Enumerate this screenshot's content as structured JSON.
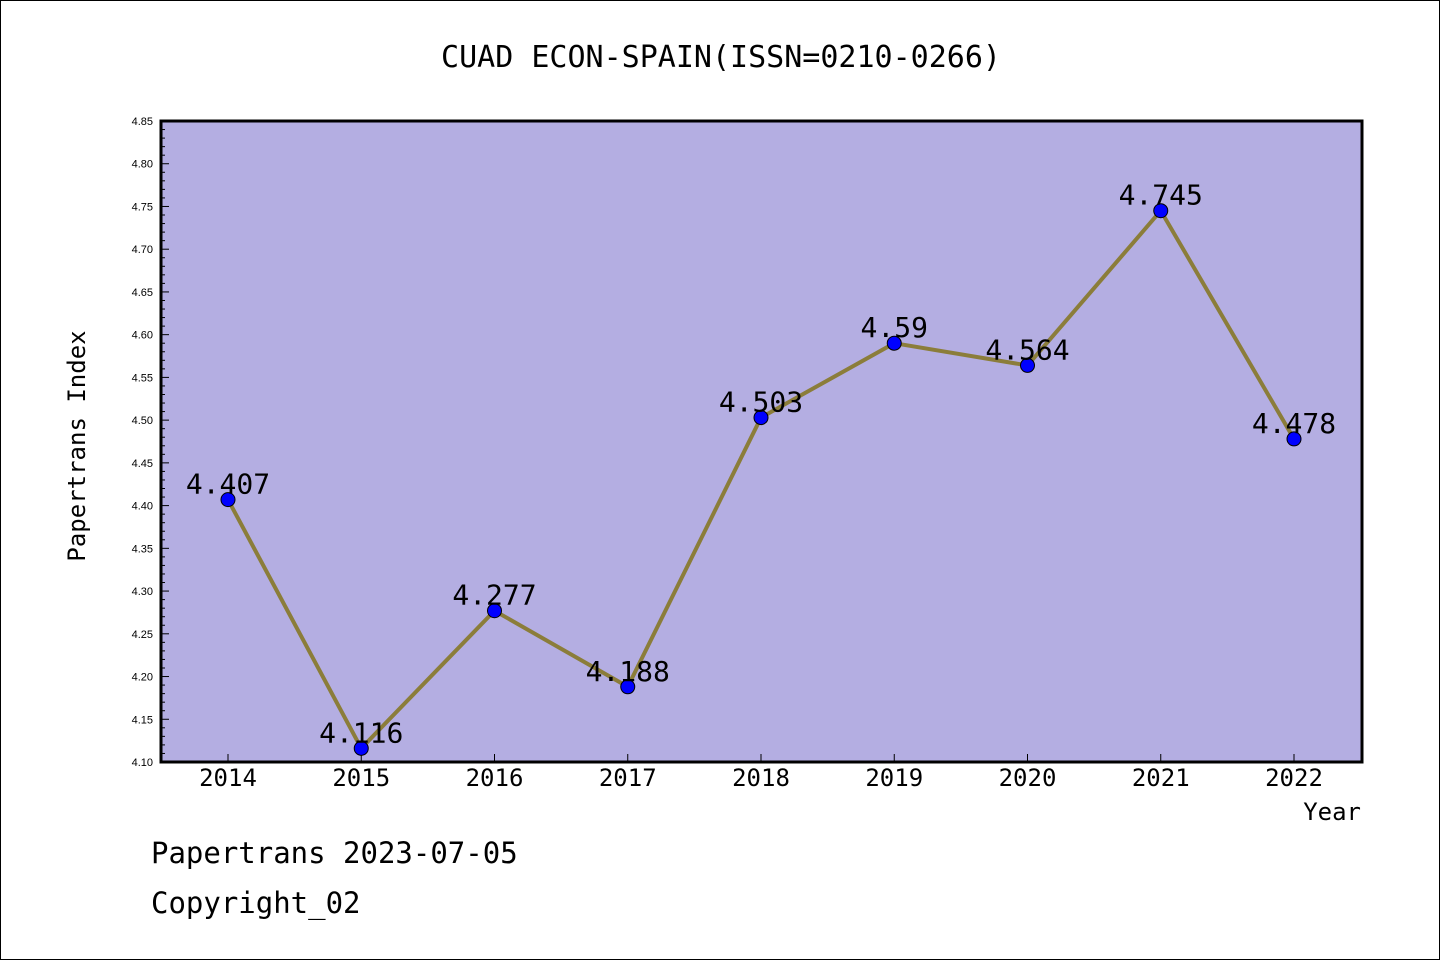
{
  "chart_data": {
    "type": "line",
    "title": "CUAD ECON-SPAIN(ISSN=0210-0266)",
    "xlabel": "Year",
    "ylabel": "Papertrans Index",
    "categories": [
      "2014",
      "2015",
      "2016",
      "2017",
      "2018",
      "2019",
      "2020",
      "2021",
      "2022"
    ],
    "values": [
      4.407,
      4.116,
      4.277,
      4.188,
      4.503,
      4.59,
      4.564,
      4.745,
      4.478
    ],
    "data_labels": [
      "4.407",
      "4.116",
      "4.277",
      "4.188",
      "4.503",
      "4.59",
      "4.564",
      "4.745",
      "4.478"
    ],
    "ylim": [
      4.1,
      4.85
    ],
    "yticks": [
      "4.10",
      "4.15",
      "4.20",
      "4.25",
      "4.30",
      "4.35",
      "4.40",
      "4.45",
      "4.50",
      "4.55",
      "4.60",
      "4.65",
      "4.70",
      "4.75",
      "4.80",
      "4.85"
    ],
    "grid": false,
    "colors": {
      "plot_background": "#b4aee2",
      "line": "#8b7d3a",
      "marker": "#0000ff"
    }
  },
  "footer": {
    "line1": "Papertrans 2023-07-05",
    "line2": "Copyright_02"
  }
}
